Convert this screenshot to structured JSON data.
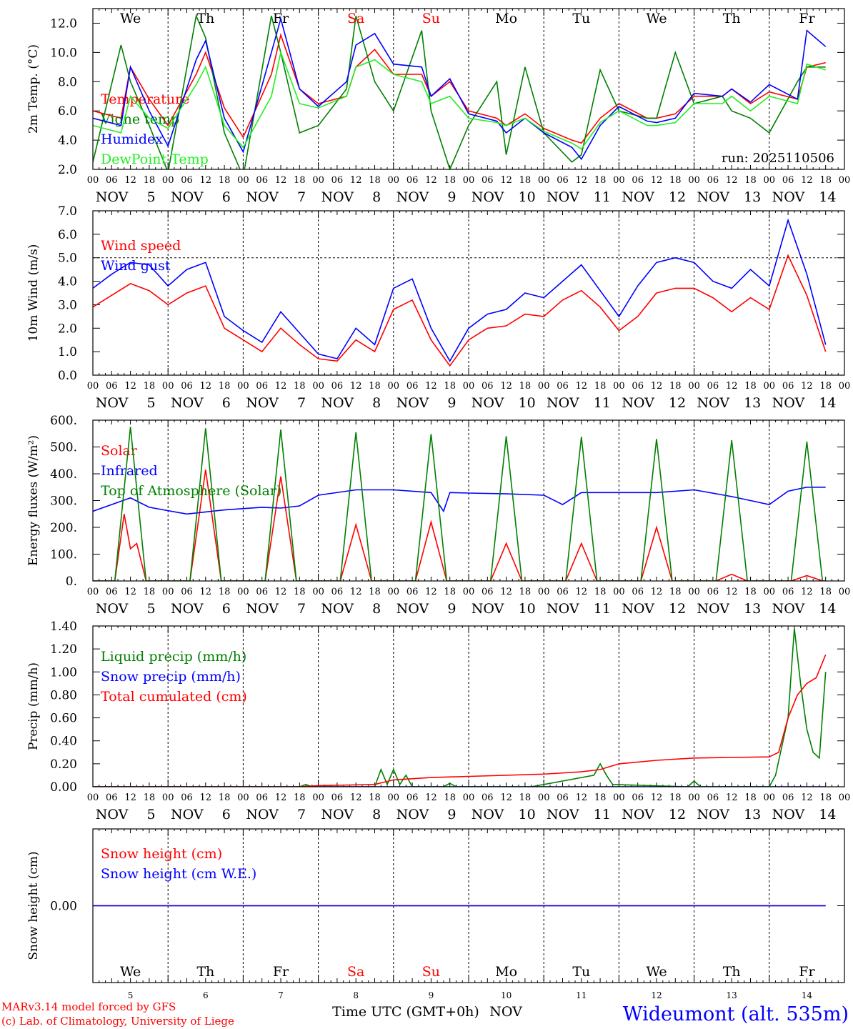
{
  "colors": {
    "red": "#ff0000",
    "green": "#008000",
    "blue": "#0000ff",
    "lightgreen": "#22ee22",
    "black": "#000000",
    "grid": "#000000"
  },
  "x_hours": [
    "00",
    "06",
    "12",
    "18"
  ],
  "days": [
    {
      "weekday": "We",
      "weekday_color": "#000000",
      "month_label": "NOV",
      "day_num": "5"
    },
    {
      "weekday": "Th",
      "weekday_color": "#000000",
      "month_label": "NOV",
      "day_num": "6"
    },
    {
      "weekday": "Fr",
      "weekday_color": "#000000",
      "month_label": "NOV",
      "day_num": "7"
    },
    {
      "weekday": "Sa",
      "weekday_color": "#ff0000",
      "month_label": "NOV",
      "day_num": "8"
    },
    {
      "weekday": "Su",
      "weekday_color": "#ff0000",
      "month_label": "NOV",
      "day_num": "9"
    },
    {
      "weekday": "Mo",
      "weekday_color": "#000000",
      "month_label": "NOV",
      "day_num": "10"
    },
    {
      "weekday": "Tu",
      "weekday_color": "#000000",
      "month_label": "NOV",
      "day_num": "11"
    },
    {
      "weekday": "We",
      "weekday_color": "#000000",
      "month_label": "NOV",
      "day_num": "12"
    },
    {
      "weekday": "Th",
      "weekday_color": "#000000",
      "month_label": "NOV",
      "day_num": "13"
    },
    {
      "weekday": "Fr",
      "weekday_color": "#000000",
      "month_label": "NOV",
      "day_num": "14"
    }
  ],
  "run_label": "run: 2025110506",
  "footer": {
    "credit_line1": "MARv3.14 model forced by GFS",
    "credit_line2": "(c) Lab. of Climatology, University of Liege",
    "xlabel": "Time UTC (GMT+0h)",
    "month": "NOV",
    "station": "Wideumont (alt. 535m)"
  },
  "chart_data": [
    {
      "type": "line",
      "ylabel": "2m Temp. (°C)",
      "ylim": [
        2,
        13
      ],
      "yticks": [
        "2.0",
        "4.0",
        "6.0",
        "8.0",
        "10.0",
        "12.0"
      ],
      "ytick_values": [
        2,
        4,
        6,
        8,
        10,
        12
      ],
      "grid": "vertical-dashed",
      "legend_position": "left",
      "series": [
        {
          "name": "Temperature",
          "color": "#ff0000",
          "x": [
            0,
            9,
            12,
            18,
            24,
            33,
            36,
            42,
            48,
            57,
            60,
            66,
            72,
            81,
            84,
            90,
            96,
            105,
            108,
            114,
            120,
            129,
            132,
            138,
            144,
            153,
            156,
            162,
            168,
            177,
            180,
            186,
            192,
            201,
            204,
            210,
            216,
            225,
            228,
            234
          ],
          "y": [
            6.0,
            5.5,
            9.0,
            6.8,
            5.0,
            8.5,
            10.0,
            6.2,
            4.2,
            8.5,
            11.2,
            7.5,
            6.5,
            7.0,
            9.0,
            10.2,
            8.5,
            8.5,
            7.0,
            8.0,
            6.0,
            5.5,
            5.0,
            5.8,
            4.8,
            4.0,
            3.8,
            5.5,
            6.5,
            5.5,
            5.5,
            5.8,
            7.0,
            7.0,
            7.5,
            6.5,
            7.3,
            6.8,
            9.0,
            9.3
          ]
        },
        {
          "name": "Vigne temp",
          "color": "#008000",
          "x": [
            0,
            9,
            12,
            18,
            24,
            33,
            36,
            42,
            48,
            57,
            60,
            66,
            72,
            81,
            84,
            90,
            96,
            105,
            108,
            114,
            120,
            129,
            132,
            138,
            144,
            153,
            156,
            162,
            168,
            177,
            180,
            186,
            192,
            201,
            204,
            210,
            216,
            225,
            228,
            234
          ],
          "y": [
            2.5,
            10.5,
            8.0,
            5.0,
            1.8,
            12.5,
            11.0,
            4.5,
            1.5,
            12.5,
            10.0,
            4.5,
            5.0,
            7.5,
            12.5,
            8.0,
            6.0,
            11.5,
            6.0,
            2.0,
            5.0,
            8.0,
            3.0,
            9.0,
            4.5,
            2.5,
            3.0,
            8.8,
            6.0,
            5.5,
            5.5,
            10.0,
            6.5,
            7.0,
            6.0,
            5.5,
            4.5,
            8.0,
            9.0,
            9.0
          ]
        },
        {
          "name": "Humidex",
          "color": "#0000ff",
          "x": [
            0,
            9,
            12,
            18,
            24,
            33,
            36,
            42,
            48,
            57,
            60,
            66,
            72,
            81,
            84,
            90,
            96,
            105,
            108,
            114,
            120,
            129,
            132,
            138,
            144,
            153,
            156,
            162,
            168,
            177,
            180,
            186,
            192,
            201,
            204,
            210,
            216,
            225,
            228,
            234
          ],
          "y": [
            5.5,
            5.0,
            9.0,
            6.0,
            3.6,
            9.5,
            10.8,
            5.5,
            3.2,
            10.0,
            12.3,
            7.5,
            6.3,
            8.0,
            10.5,
            11.3,
            9.2,
            9.0,
            7.0,
            8.2,
            5.8,
            5.3,
            4.5,
            5.5,
            4.5,
            3.5,
            2.7,
            5.0,
            6.3,
            5.3,
            5.2,
            5.5,
            7.2,
            7.0,
            7.5,
            6.6,
            7.8,
            6.8,
            11.5,
            10.4
          ]
        },
        {
          "name": "DewPoint Temp",
          "color": "#22ee22",
          "x": [
            0,
            9,
            12,
            18,
            24,
            33,
            36,
            42,
            48,
            57,
            60,
            66,
            72,
            81,
            84,
            90,
            96,
            105,
            108,
            114,
            120,
            129,
            132,
            138,
            144,
            153,
            156,
            162,
            168,
            177,
            180,
            186,
            192,
            201,
            204,
            210,
            216,
            225,
            228,
            234
          ],
          "y": [
            5.0,
            4.5,
            7.0,
            5.5,
            4.8,
            7.8,
            9.0,
            5.0,
            3.5,
            7.0,
            10.0,
            6.5,
            6.2,
            7.0,
            9.0,
            9.5,
            8.5,
            8.0,
            6.5,
            7.0,
            5.5,
            5.2,
            5.0,
            5.5,
            4.6,
            3.8,
            3.4,
            5.2,
            6.0,
            5.0,
            5.0,
            5.2,
            6.5,
            6.5,
            7.0,
            6.0,
            7.0,
            6.5,
            9.2,
            8.8
          ]
        }
      ]
    },
    {
      "type": "line",
      "ylabel": "10m Wind (m/s)",
      "ylim": [
        0,
        7
      ],
      "yticks": [
        "0.0",
        "1.0",
        "2.0",
        "3.0",
        "4.0",
        "5.0",
        "6.0",
        "7.0"
      ],
      "ytick_values": [
        0,
        1,
        2,
        3,
        4,
        5,
        6,
        7
      ],
      "hline": 5,
      "legend_position": "left",
      "series": [
        {
          "name": "Wind speed",
          "color": "#ff0000",
          "x": [
            0,
            6,
            12,
            18,
            24,
            30,
            36,
            42,
            48,
            54,
            60,
            66,
            72,
            78,
            84,
            90,
            96,
            102,
            108,
            114,
            120,
            126,
            132,
            138,
            144,
            150,
            156,
            162,
            168,
            174,
            180,
            186,
            192,
            198,
            204,
            210,
            216,
            222,
            228,
            234
          ],
          "y": [
            2.9,
            3.4,
            3.9,
            3.6,
            3.0,
            3.5,
            3.8,
            2.0,
            1.5,
            1.0,
            2.0,
            1.3,
            0.7,
            0.6,
            1.5,
            1.0,
            2.8,
            3.2,
            1.5,
            0.4,
            1.5,
            2.0,
            2.1,
            2.6,
            2.5,
            3.2,
            3.6,
            2.9,
            1.9,
            2.5,
            3.5,
            3.7,
            3.7,
            3.3,
            2.7,
            3.3,
            2.8,
            5.1,
            3.4,
            1.0
          ]
        },
        {
          "name": "Wind gust",
          "color": "#0000ff",
          "x": [
            0,
            6,
            12,
            18,
            24,
            30,
            36,
            42,
            48,
            54,
            60,
            66,
            72,
            78,
            84,
            90,
            96,
            102,
            108,
            114,
            120,
            126,
            132,
            138,
            144,
            150,
            156,
            162,
            168,
            174,
            180,
            186,
            192,
            198,
            204,
            210,
            216,
            222,
            228,
            234
          ],
          "y": [
            3.7,
            4.3,
            4.8,
            4.7,
            3.8,
            4.5,
            4.8,
            2.5,
            1.9,
            1.4,
            2.7,
            1.8,
            0.9,
            0.7,
            2.0,
            1.3,
            3.7,
            4.1,
            2.0,
            0.6,
            2.0,
            2.6,
            2.8,
            3.5,
            3.3,
            4.0,
            4.7,
            3.6,
            2.5,
            3.8,
            4.8,
            5.0,
            4.8,
            4.0,
            3.7,
            4.5,
            3.8,
            6.6,
            4.3,
            1.3
          ]
        }
      ]
    },
    {
      "type": "line",
      "ylabel": "Energy fluxes (W/m²)",
      "ylim": [
        0,
        600
      ],
      "yticks": [
        "0.",
        "100.",
        "200.",
        "300.",
        "400.",
        "500.",
        "600."
      ],
      "ytick_values": [
        0,
        100,
        200,
        300,
        400,
        500,
        600
      ],
      "legend_position": "left",
      "series": [
        {
          "name": "Solar",
          "color": "#ff0000",
          "x": [
            0,
            7,
            10,
            12,
            14,
            17,
            24,
            31,
            36,
            41,
            48,
            55,
            60,
            65,
            72,
            79,
            84,
            89,
            96,
            103,
            108,
            113,
            120,
            127,
            132,
            137,
            144,
            151,
            156,
            161,
            168,
            175,
            180,
            185,
            192,
            199,
            204,
            209,
            216,
            223,
            228,
            233,
            234
          ],
          "y": [
            0,
            0,
            250,
            120,
            140,
            0,
            0,
            0,
            415,
            0,
            0,
            0,
            390,
            0,
            0,
            0,
            210,
            0,
            0,
            0,
            220,
            0,
            0,
            0,
            140,
            0,
            0,
            0,
            140,
            0,
            0,
            0,
            200,
            0,
            0,
            0,
            25,
            0,
            0,
            0,
            20,
            0,
            0
          ]
        },
        {
          "name": "Infrared",
          "color": "#0000ff",
          "x": [
            0,
            12,
            18,
            30,
            42,
            54,
            60,
            66,
            72,
            84,
            96,
            108,
            112,
            114,
            120,
            132,
            144,
            150,
            156,
            168,
            180,
            192,
            204,
            216,
            222,
            228,
            234
          ],
          "y": [
            260,
            310,
            275,
            250,
            265,
            275,
            272,
            280,
            320,
            340,
            340,
            330,
            260,
            330,
            328,
            325,
            320,
            285,
            330,
            330,
            330,
            340,
            315,
            285,
            335,
            350,
            350
          ]
        },
        {
          "name": "Top of Atmosphere (Solar)",
          "color": "#008000",
          "x": [
            0,
            7,
            12,
            17,
            24,
            31,
            36,
            41,
            48,
            55,
            60,
            65,
            72,
            79,
            84,
            89,
            96,
            103,
            108,
            113,
            120,
            127,
            132,
            137,
            144,
            151,
            156,
            161,
            168,
            175,
            180,
            185,
            192,
            199,
            204,
            209,
            216,
            223,
            228,
            233,
            234
          ],
          "y": [
            0,
            0,
            575,
            0,
            0,
            0,
            570,
            0,
            0,
            0,
            565,
            0,
            0,
            0,
            555,
            0,
            0,
            0,
            548,
            0,
            0,
            0,
            540,
            0,
            0,
            0,
            538,
            0,
            0,
            0,
            530,
            0,
            0,
            0,
            525,
            0,
            0,
            0,
            520,
            0,
            0
          ]
        }
      ]
    },
    {
      "type": "line",
      "ylabel": "Precip (mm/h)",
      "ylim": [
        0,
        1.4
      ],
      "yticks": [
        "0.00",
        "0.20",
        "0.40",
        "0.60",
        "0.80",
        "1.00",
        "1.20",
        "1.40"
      ],
      "ytick_values": [
        0,
        0.2,
        0.4,
        0.6,
        0.8,
        1.0,
        1.2,
        1.4
      ],
      "legend_position": "left",
      "series": [
        {
          "name": "Liquid precip (mm/h)",
          "color": "#008000",
          "x": [
            0,
            66,
            68,
            70,
            90,
            92,
            94,
            96,
            98,
            100,
            102,
            112,
            114,
            116,
            140,
            160,
            162,
            164,
            166,
            190,
            192,
            194,
            216,
            218,
            222,
            224,
            226,
            228,
            230,
            232,
            234
          ],
          "y": [
            0,
            0,
            0.02,
            0,
            0,
            0.15,
            0.02,
            0.15,
            0.02,
            0.1,
            0,
            0,
            0.03,
            0,
            0,
            0.1,
            0.2,
            0.1,
            0.02,
            0,
            0.05,
            0,
            0,
            0.1,
            0.6,
            1.38,
            0.9,
            0.5,
            0.3,
            0.25,
            1.0
          ]
        },
        {
          "name": "Snow precip (mm/h)",
          "color": "#0000ff",
          "x": [
            0,
            234
          ],
          "y": [
            0,
            0
          ]
        },
        {
          "name": "Total cumulated (cm)",
          "color": "#ff0000",
          "x": [
            0,
            66,
            72,
            90,
            96,
            108,
            120,
            144,
            156,
            162,
            168,
            180,
            192,
            216,
            219,
            222,
            225,
            228,
            231,
            234
          ],
          "y": [
            0,
            0,
            0.01,
            0.02,
            0.06,
            0.08,
            0.09,
            0.11,
            0.13,
            0.15,
            0.2,
            0.23,
            0.25,
            0.26,
            0.3,
            0.6,
            0.8,
            0.9,
            0.95,
            1.15
          ]
        }
      ]
    },
    {
      "type": "line",
      "ylabel": "Snow height (cm)",
      "ylim": [
        -1,
        1
      ],
      "yticks": [
        "0.00"
      ],
      "ytick_values": [
        0
      ],
      "legend_position": "left",
      "series": [
        {
          "name": "Snow height (cm)",
          "color": "#ff0000",
          "x": [
            0,
            234
          ],
          "y": [
            0,
            0
          ]
        },
        {
          "name": "Snow height (cm W.E.)",
          "color": "#0000ff",
          "x": [
            0,
            234
          ],
          "y": [
            0,
            0
          ]
        }
      ]
    }
  ]
}
